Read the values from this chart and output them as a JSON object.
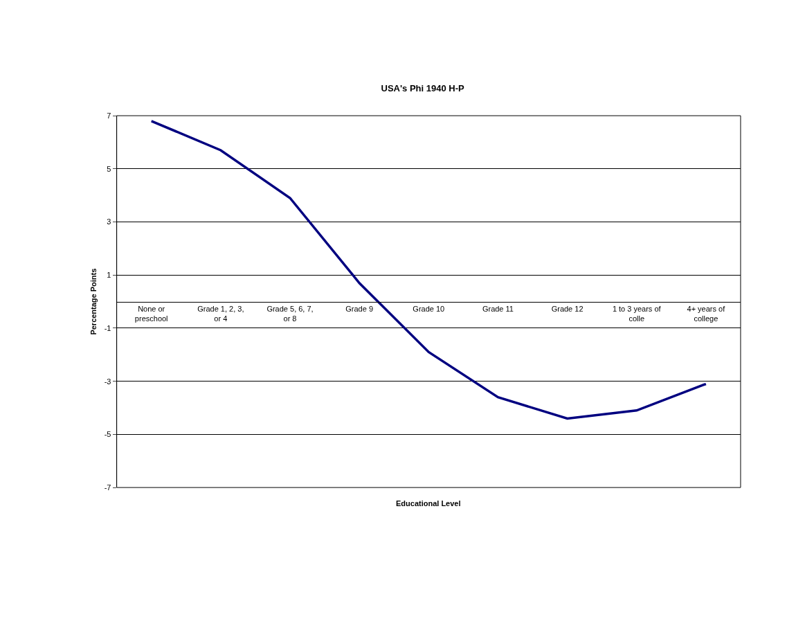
{
  "chart_data": {
    "type": "line",
    "title": "USA's Phi 1940 H-P",
    "xlabel": "Educational Level",
    "ylabel": "Percentage Points",
    "categories": [
      "None or preschool",
      "Grade 1, 2, 3, or 4",
      "Grade 5, 6, 7, or 8",
      "Grade 9",
      "Grade 10",
      "Grade 11",
      "Grade 12",
      "1 to 3 years of colle",
      "4+ years of college"
    ],
    "series": [
      {
        "color": "#000080",
        "values": [
          6.8,
          5.7,
          3.9,
          0.7,
          -1.9,
          -3.6,
          -4.4,
          -4.1,
          -3.1
        ]
      }
    ],
    "ylim": [
      -7,
      7
    ],
    "yticks": [
      -7,
      -5,
      -3,
      -1,
      1,
      3,
      5,
      7
    ],
    "grid": "y",
    "marker": "none",
    "line_style": "solid"
  }
}
